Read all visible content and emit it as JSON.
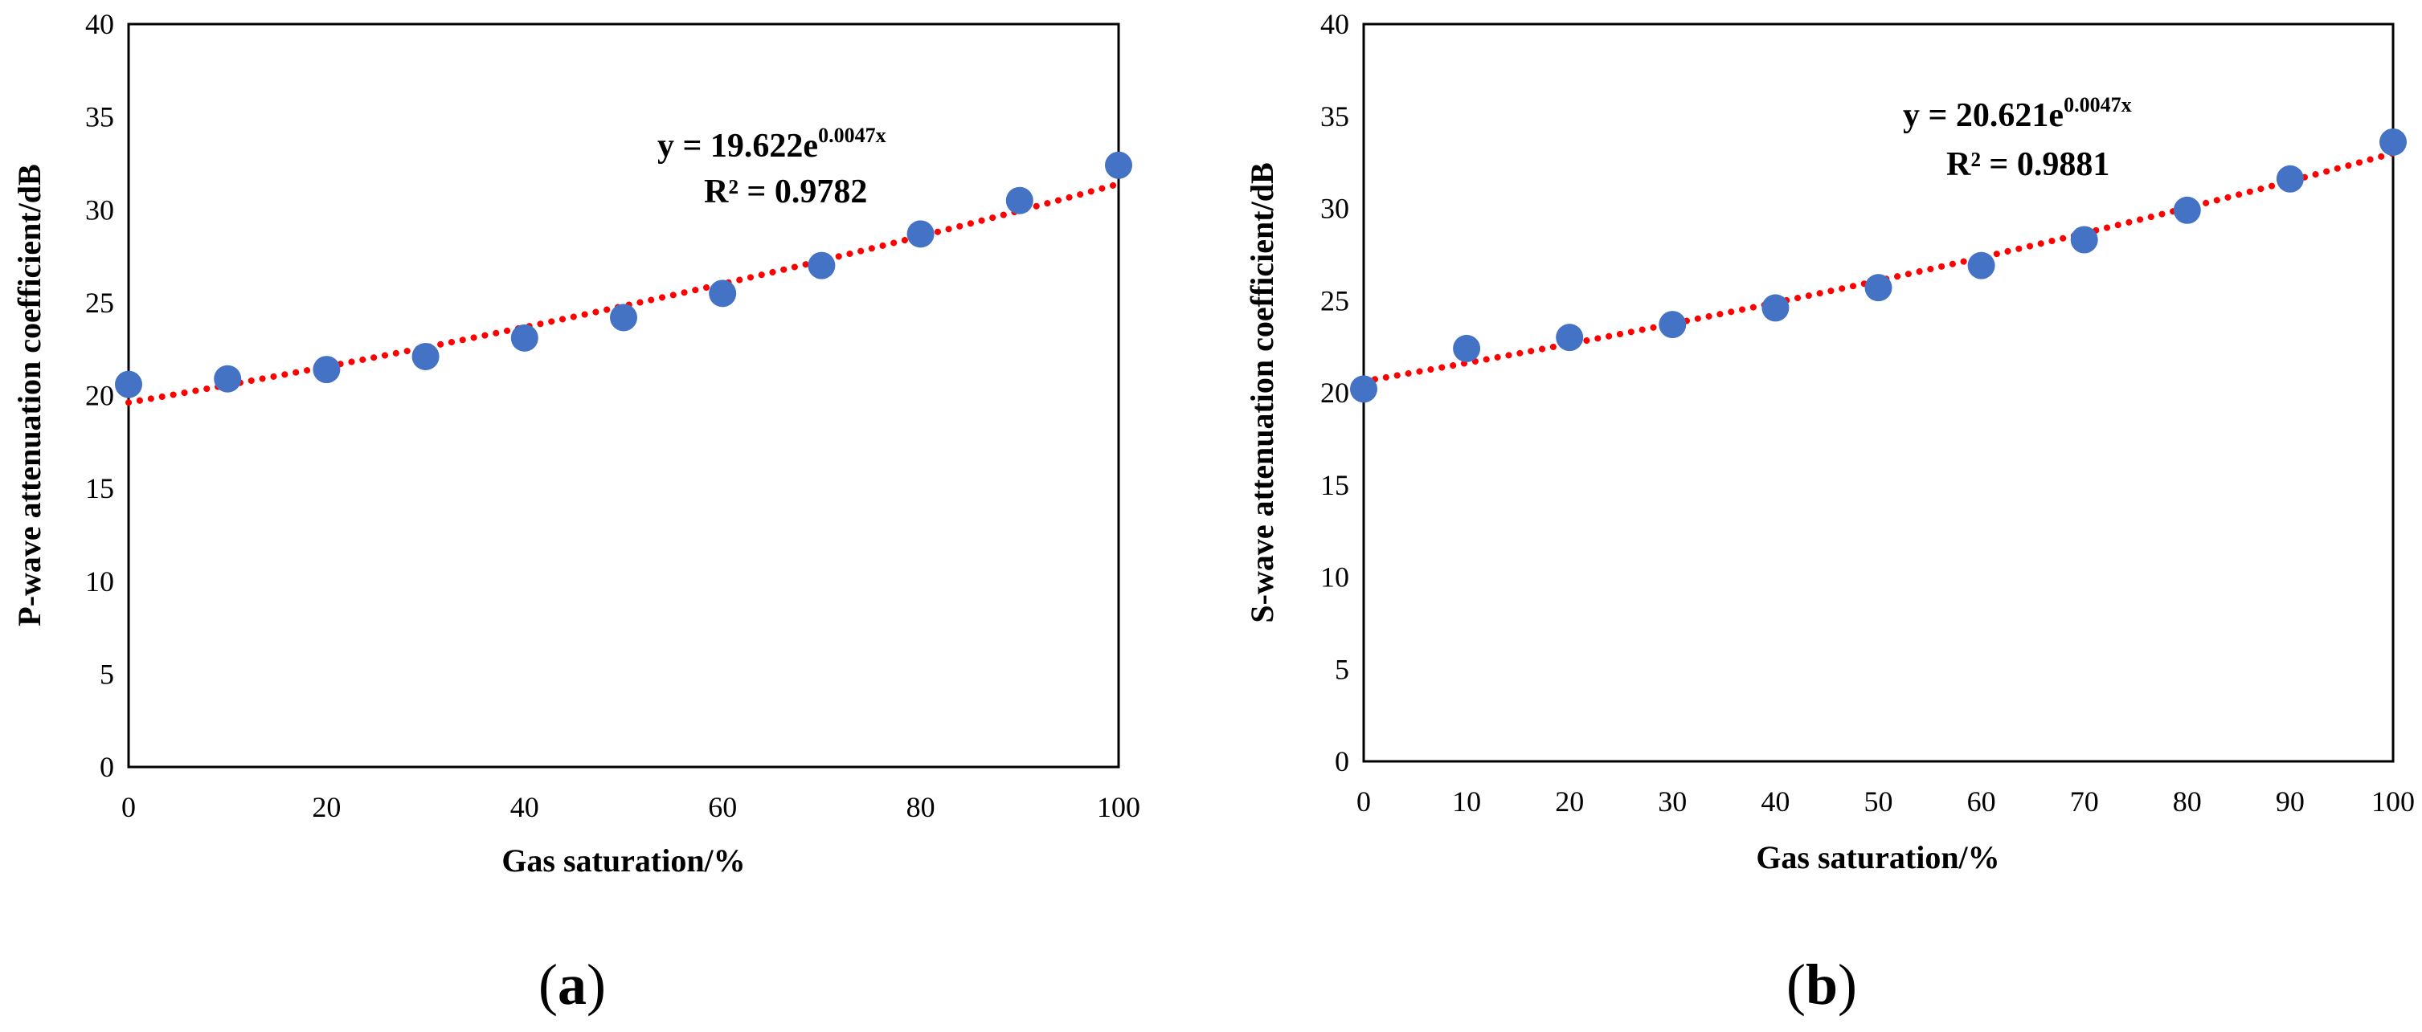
{
  "chart_data": [
    {
      "type": "scatter",
      "panel_label": {
        "open": "(",
        "letter": "a",
        "close": ")"
      },
      "xlabel": "Gas saturation/%",
      "ylabel": "P-wave attenuation coefficient/dB",
      "xlim": [
        0,
        100
      ],
      "ylim": [
        0,
        40
      ],
      "xticks": [
        0,
        20,
        40,
        60,
        80,
        100
      ],
      "yticks": [
        0,
        5,
        10,
        15,
        20,
        25,
        30,
        35,
        40
      ],
      "x": [
        0,
        10,
        20,
        30,
        40,
        50,
        60,
        70,
        80,
        90,
        100
      ],
      "y": [
        20.6,
        20.9,
        21.4,
        22.1,
        23.1,
        24.2,
        25.5,
        27.0,
        28.7,
        30.5,
        32.4
      ],
      "trendline": {
        "kind": "exponential",
        "a": 19.622,
        "b": 0.0047,
        "color": "#FF0000"
      },
      "equation": {
        "prefix": "y = 19.622e",
        "exponent": "0.0047x",
        "r2": "R² = 0.9782"
      },
      "point_color": "#4472C4",
      "grid": false
    },
    {
      "type": "scatter",
      "panel_label": {
        "open": "(",
        "letter": "b",
        "close": ")"
      },
      "xlabel": "Gas saturation/%",
      "ylabel": "S-wave attenuation coefficient/dB",
      "xlim": [
        0,
        100
      ],
      "ylim": [
        0,
        40
      ],
      "xticks": [
        0,
        10,
        20,
        30,
        40,
        50,
        60,
        70,
        80,
        90,
        100
      ],
      "yticks": [
        0,
        5,
        10,
        15,
        20,
        25,
        30,
        35,
        40
      ],
      "x": [
        0,
        10,
        20,
        30,
        40,
        50,
        60,
        70,
        80,
        90,
        100
      ],
      "y": [
        20.2,
        22.4,
        23.0,
        23.7,
        24.6,
        25.7,
        26.9,
        28.3,
        29.9,
        31.6,
        33.6
      ],
      "trendline": {
        "kind": "exponential",
        "a": 20.621,
        "b": 0.0047,
        "color": "#FF0000"
      },
      "equation": {
        "prefix": "y = 20.621e",
        "exponent": "0.0047x",
        "r2": "R² = 0.9881"
      },
      "point_color": "#4472C4",
      "grid": false
    }
  ]
}
